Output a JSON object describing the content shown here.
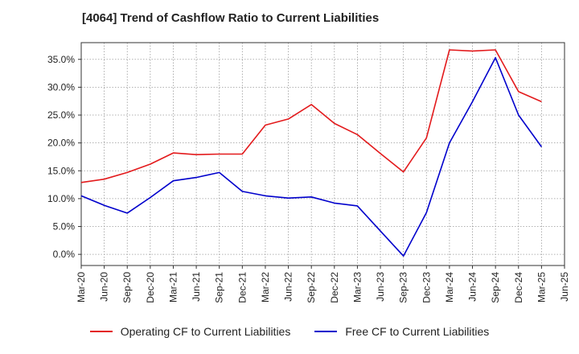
{
  "chart_data": {
    "type": "line",
    "title": "[4064]  Trend of Cashflow Ratio to Current Liabilities",
    "x": [
      "Mar-20",
      "Jun-20",
      "Sep-20",
      "Dec-20",
      "Mar-21",
      "Jun-21",
      "Sep-21",
      "Dec-21",
      "Mar-22",
      "Jun-22",
      "Sep-22",
      "Dec-22",
      "Mar-23",
      "Jun-23",
      "Sep-23",
      "Dec-23",
      "Mar-24",
      "Jun-24",
      "Sep-24",
      "Dec-24",
      "Mar-25",
      "Jun-25"
    ],
    "y_ticks": [
      "0.0%",
      "5.0%",
      "10.0%",
      "15.0%",
      "20.0%",
      "25.0%",
      "30.0%",
      "35.0%"
    ],
    "ylim": [
      -2.0,
      38.0
    ],
    "grid": true,
    "legend_position": "bottom",
    "series": [
      {
        "name": "Operating CF to Current Liabilities",
        "color": "#e31a1c",
        "values": [
          12.9,
          13.5,
          14.7,
          16.2,
          18.2,
          17.9,
          18.0,
          18.0,
          23.2,
          24.3,
          26.9,
          23.5,
          21.5,
          18.1,
          14.8,
          20.9,
          36.7,
          36.5,
          36.7,
          29.2,
          27.4,
          null
        ]
      },
      {
        "name": "Free CF to Current Liabilities",
        "color": "#0000cc",
        "values": [
          10.5,
          8.8,
          7.4,
          10.2,
          13.2,
          13.8,
          14.7,
          11.3,
          10.5,
          10.1,
          10.3,
          9.2,
          8.7,
          4.2,
          -0.3,
          7.5,
          20.0,
          27.4,
          35.3,
          25.0,
          19.3,
          null
        ]
      }
    ]
  }
}
